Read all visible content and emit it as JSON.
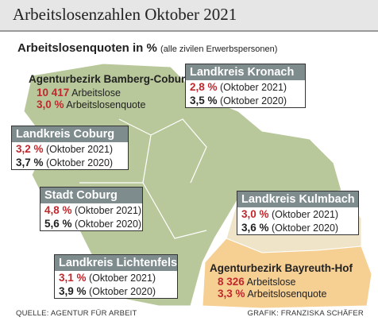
{
  "header": {
    "title": "Arbeitslosenzahlen Oktober 2021"
  },
  "subtitle": {
    "main": "Arbeitslosenquoten in %",
    "note": "(alle zivilen Erwerbspersonen)"
  },
  "boxes": [
    {
      "title": "Agenturbezirk Bamberg-Coburg",
      "lines": [
        {
          "value": "10 417",
          "label": "Arbeitslose"
        },
        {
          "value": "3,0 %",
          "label": "Arbeitslosenquote"
        }
      ]
    },
    {
      "title": "Landkreis Kronach",
      "lines": [
        {
          "value": "2,8 %",
          "label": "(Oktober 2021)"
        },
        {
          "value": "3,5 %",
          "label": "(Oktober 2020)"
        }
      ]
    },
    {
      "title": "Landkreis Coburg",
      "lines": [
        {
          "value": "3,2 %",
          "label": "(Oktober 2021)"
        },
        {
          "value": "3,7 %",
          "label": "(Oktober 2020)"
        }
      ]
    },
    {
      "title": "Stadt Coburg",
      "lines": [
        {
          "value": "4,8 %",
          "label": "(Oktober 2021)"
        },
        {
          "value": "5,6 %",
          "label": "(Oktober 2020)"
        }
      ]
    },
    {
      "title": "Landkreis Kulmbach",
      "lines": [
        {
          "value": "3,0 %",
          "label": "(Oktober 2021)"
        },
        {
          "value": "3,6 %",
          "label": "(Oktober 2020)"
        }
      ]
    },
    {
      "title": "Landkreis Lichtenfels",
      "lines": [
        {
          "value": "3,1 %",
          "label": "(Oktober 2021)"
        },
        {
          "value": "3,9 %",
          "label": "(Oktober 2020)"
        }
      ]
    },
    {
      "title": "Agenturbezirk Bayreuth-Hof",
      "lines": [
        {
          "value": "8 326",
          "label": "Arbeitslose"
        },
        {
          "value": "3,3 %",
          "label": "Arbeitslosenquote"
        }
      ]
    }
  ],
  "footer": {
    "source": "QUELLE: AGENTUR FÜR ARBEIT",
    "credit": "GRAFIK: FRANZISKA SCHÄFER"
  }
}
